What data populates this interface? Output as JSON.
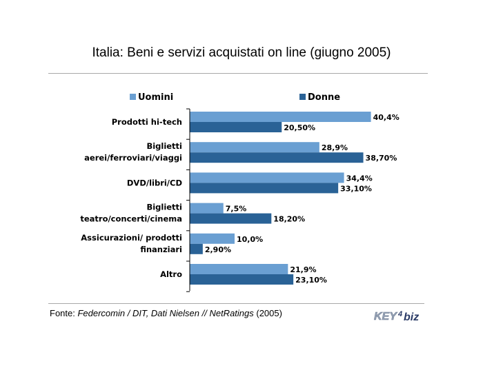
{
  "title": "Italia: Beni e servizi acquistati on line (giugno 2005)",
  "source": {
    "prefix": "Fonte: ",
    "italic": "Federcomin / DIT, Dati Nielsen // NetRatings",
    "suffix": " (2005)"
  },
  "logo": {
    "part1": "KEY",
    "part2": "4",
    "part3": "biz"
  },
  "colors": {
    "uomini": "#6a9fd2",
    "donne": "#2a6296"
  },
  "chart_data": {
    "type": "bar",
    "orientation": "horizontal",
    "title": "Italia: Beni e servizi acquistati on line (giugno 2005)",
    "legend_position": "top",
    "categories": [
      [
        "Prodotti hi-tech"
      ],
      [
        "Biglietti",
        "aerei/ferroviari/viaggi"
      ],
      [
        "DVD/libri/CD"
      ],
      [
        "Biglietti",
        "teatro/concerti/cinema"
      ],
      [
        "Assicurazioni/ prodotti",
        "finanziari"
      ],
      [
        "Altro"
      ]
    ],
    "series": [
      {
        "name": "Uomini",
        "values": [
          40.4,
          28.9,
          34.4,
          7.5,
          10.0,
          21.9
        ],
        "labels": [
          "40,4%",
          "28,9%",
          "34,4%",
          "7,5%",
          "10,0%",
          "21,9%"
        ]
      },
      {
        "name": "Donne",
        "values": [
          20.5,
          38.7,
          33.1,
          18.2,
          2.9,
          23.1
        ],
        "labels": [
          "20,50%",
          "38,70%",
          "33,10%",
          "18,20%",
          "2,90%",
          "23,10%"
        ]
      }
    ],
    "xlim": [
      0,
      45
    ],
    "grid": false
  }
}
